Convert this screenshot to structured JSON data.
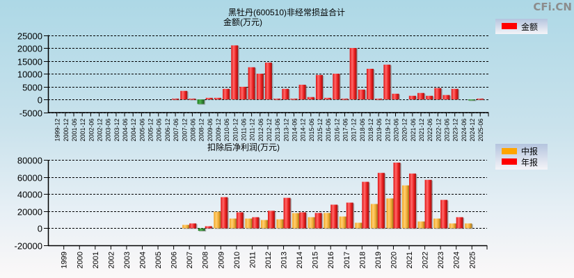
{
  "watermark": "CFi.CN",
  "chart_data": [
    {
      "type": "bar",
      "title": "黑牡丹(600510)非经常损益合计",
      "ylabel": "金额(万元)",
      "ylim": [
        -5000,
        25000
      ],
      "yticks": [
        25000,
        20000,
        15000,
        10000,
        5000,
        0,
        -5000
      ],
      "grid": true,
      "legend_position": "top-right",
      "legend": [
        {
          "label": "金额",
          "color": "#ff0000"
        }
      ],
      "negative_color": "#2e8b2e",
      "categories": [
        "1999-12",
        "2000-12",
        "2001-06",
        "2001-12",
        "2002-06",
        "2002-12",
        "2003-06",
        "2003-12",
        "2004-06",
        "2004-12",
        "2005-06",
        "2005-12",
        "2006-06",
        "2006-12",
        "2007-06",
        "2007-12",
        "2008-06",
        "2008-12",
        "2009-06",
        "2009-12",
        "2010-06",
        "2010-12",
        "2011-06",
        "2011-12",
        "2012-06",
        "2012-12",
        "2013-06",
        "2013-12",
        "2014-06",
        "2014-12",
        "2015-06",
        "2015-12",
        "2016-06",
        "2016-12",
        "2017-06",
        "2017-12",
        "2018-06",
        "2018-12",
        "2019-06",
        "2019-12",
        "2020-06",
        "2020-12",
        "2021-06",
        "2021-12",
        "2022-06",
        "2022-12",
        "2023-06",
        "2023-12",
        "2024-06",
        "2024-12",
        "2025-06"
      ],
      "series": [
        {
          "name": "金额",
          "values": [
            null,
            null,
            null,
            null,
            null,
            null,
            null,
            null,
            null,
            null,
            null,
            null,
            null,
            null,
            300,
            3300,
            300,
            -1800,
            600,
            600,
            4100,
            21000,
            4900,
            12500,
            10000,
            14300,
            300,
            4100,
            300,
            5700,
            900,
            9500,
            600,
            10000,
            300,
            20000,
            3800,
            11900,
            300,
            13500,
            2200,
            null,
            1400,
            2500,
            1400,
            4400,
            1700,
            4100,
            null,
            -200,
            300
          ]
        }
      ]
    },
    {
      "type": "bar",
      "title": "扣除后净利润(万元)",
      "ylim": [
        -20000,
        80000
      ],
      "yticks": [
        80000,
        60000,
        40000,
        20000,
        0,
        -20000
      ],
      "grid": true,
      "legend_position": "top-right",
      "legend": [
        {
          "label": "中报",
          "color": "#ffa500"
        },
        {
          "label": "年报",
          "color": "#ff0000"
        }
      ],
      "negative_color": "#2e8b2e",
      "categories": [
        "1999",
        "2000",
        "2001",
        "2002",
        "2003",
        "2004",
        "2005",
        "2006",
        "2007",
        "2008",
        "2009",
        "2010",
        "2011",
        "2012",
        "2013",
        "2014",
        "2015",
        "2016",
        "2017",
        "2018",
        "2019",
        "2020",
        "2021",
        "2022",
        "2023",
        "2024",
        "2025"
      ],
      "series": [
        {
          "name": "中报",
          "values": [
            null,
            null,
            null,
            null,
            null,
            null,
            null,
            null,
            4000,
            -3000,
            19500,
            11400,
            11400,
            9700,
            10500,
            17800,
            13000,
            18000,
            13800,
            6500,
            28500,
            35000,
            50300,
            8000,
            11400,
            5700,
            5700
          ]
        },
        {
          "name": "年报",
          "values": [
            null,
            null,
            null,
            null,
            null,
            null,
            null,
            null,
            5700,
            2400,
            36500,
            18700,
            13000,
            20500,
            35700,
            18700,
            18000,
            27700,
            30100,
            54500,
            65000,
            77000,
            64200,
            56800,
            33300,
            13000,
            null
          ]
        }
      ]
    }
  ]
}
